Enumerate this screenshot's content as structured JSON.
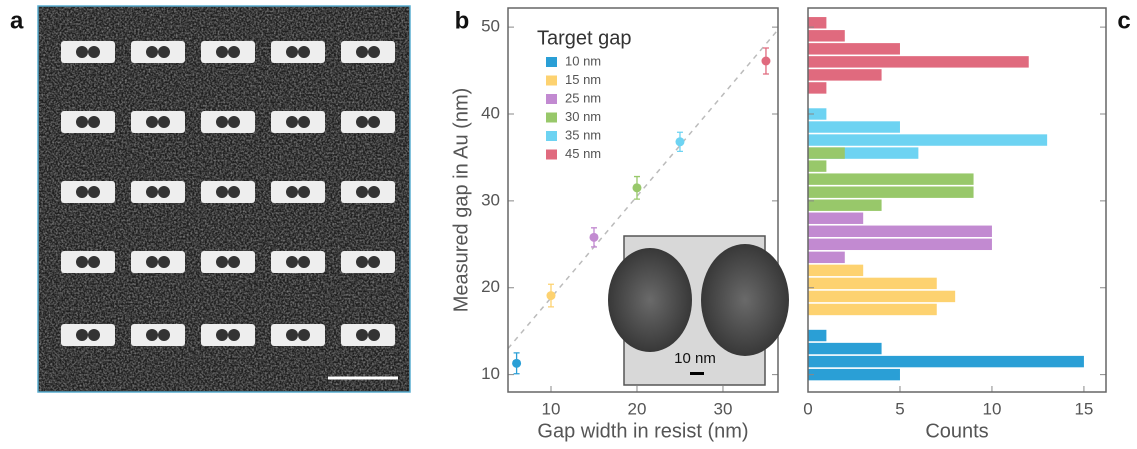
{
  "panel_a": {
    "label": "a"
  },
  "chart_data": [
    {
      "type": "scatter",
      "panel_label": "b",
      "x_label": "Gap width in resist (nm)",
      "y_label": "Measured gap in Au (nm)",
      "xlim": [
        5,
        36.4
      ],
      "ylim": [
        8,
        52.2
      ],
      "xticks": [
        10,
        20,
        30
      ],
      "yticks": [
        10,
        20,
        30,
        40,
        50
      ],
      "legend_title": "Target gap",
      "legend": "upper-left",
      "series": [
        {
          "name": "10 nm",
          "color": "#2a9fd6",
          "x": [
            6
          ],
          "values": [
            11.3
          ],
          "errors": [
            1.2
          ]
        },
        {
          "name": "15 nm",
          "color": "#fdd270",
          "x": [
            10
          ],
          "values": [
            19.1
          ],
          "errors": [
            1.3
          ]
        },
        {
          "name": "25 nm",
          "color": "#c28ad1",
          "x": [
            15
          ],
          "values": [
            25.8
          ],
          "errors": [
            1.1
          ]
        },
        {
          "name": "30 nm",
          "color": "#98c86a",
          "x": [
            20
          ],
          "values": [
            31.5
          ],
          "errors": [
            1.3
          ]
        },
        {
          "name": "35 nm",
          "color": "#6dd3f2",
          "x": [
            25
          ],
          "values": [
            36.8
          ],
          "errors": [
            1.1
          ]
        },
        {
          "name": "45 nm",
          "color": "#e06a7e",
          "x": [
            35
          ],
          "values": [
            46.1
          ],
          "errors": [
            1.5
          ]
        }
      ],
      "fit_line": {
        "x": [
          5,
          36.4
        ],
        "values": [
          13,
          49.7
        ],
        "color": "#bbbbbb"
      },
      "inset": {
        "scale_label": "10 nm"
      }
    },
    {
      "type": "histogram",
      "panel_label": "c",
      "orientation": "horizontal",
      "x_label": "Counts",
      "xlim": [
        0,
        16.2
      ],
      "xticks": [
        0,
        5,
        10,
        15
      ],
      "ylim": [
        8,
        52.2
      ],
      "yticks": [
        10,
        20,
        30,
        40,
        50
      ],
      "ytick_labels": false,
      "bin_width": 1.5,
      "series": [
        {
          "name": "10 nm",
          "color": "#2a9fd6",
          "y": [
            14.5,
            13,
            11.5,
            10
          ],
          "values": [
            1,
            4,
            15,
            5
          ]
        },
        {
          "name": "15 nm",
          "color": "#fdd270",
          "y": [
            22,
            20.5,
            19,
            17.5
          ],
          "values": [
            3,
            7,
            8,
            7
          ]
        },
        {
          "name": "25 nm",
          "color": "#c28ad1",
          "y": [
            28,
            26.5,
            25,
            23.5
          ],
          "values": [
            3,
            10,
            10,
            2
          ]
        },
        {
          "name": "30 nm",
          "color": "#98c86a",
          "y": [
            35.5,
            34,
            32.5,
            31,
            29.5
          ],
          "values": [
            2,
            1,
            9,
            9,
            4
          ]
        },
        {
          "name": "35 nm",
          "color": "#6dd3f2",
          "y": [
            40,
            38.5,
            37,
            35.5
          ],
          "values": [
            1,
            5,
            13,
            6
          ]
        },
        {
          "name": "45 nm",
          "color": "#e06a7e",
          "y": [
            50.5,
            49,
            47.5,
            46,
            44.5,
            43
          ],
          "values": [
            1,
            2,
            5,
            12,
            4,
            1
          ]
        }
      ]
    }
  ]
}
